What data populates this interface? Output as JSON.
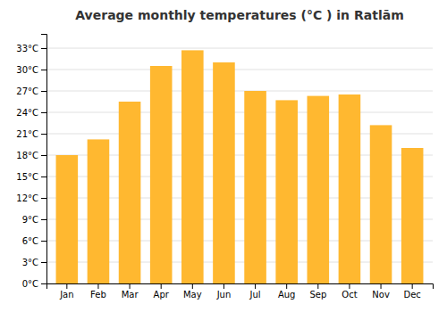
{
  "chart_data": {
    "type": "bar",
    "title": "Average monthly temperatures (°C ) in Ratlām",
    "categories": [
      "Jan",
      "Feb",
      "Mar",
      "Apr",
      "May",
      "Jun",
      "Jul",
      "Aug",
      "Sep",
      "Oct",
      "Nov",
      "Dec"
    ],
    "values": [
      18.0,
      20.2,
      25.5,
      30.5,
      32.7,
      31.0,
      27.0,
      25.7,
      26.3,
      26.5,
      22.2,
      19.0
    ],
    "color": "#FFB830",
    "ylim": [
      0,
      35
    ],
    "yticks": [
      {
        "value": 0,
        "label": "0°C"
      },
      {
        "value": 3,
        "label": "3°C"
      },
      {
        "value": 6,
        "label": "6°C"
      },
      {
        "value": 9,
        "label": "9°C"
      },
      {
        "value": 12,
        "label": "12°C"
      },
      {
        "value": 15,
        "label": "15°C"
      },
      {
        "value": 18,
        "label": "18°C"
      },
      {
        "value": 21,
        "label": "21°C"
      },
      {
        "value": 24,
        "label": "24°C"
      },
      {
        "value": 27,
        "label": "27°C"
      },
      {
        "value": 30,
        "label": "30°C"
      },
      {
        "value": 33,
        "label": "33°C"
      }
    ],
    "grid": true
  }
}
